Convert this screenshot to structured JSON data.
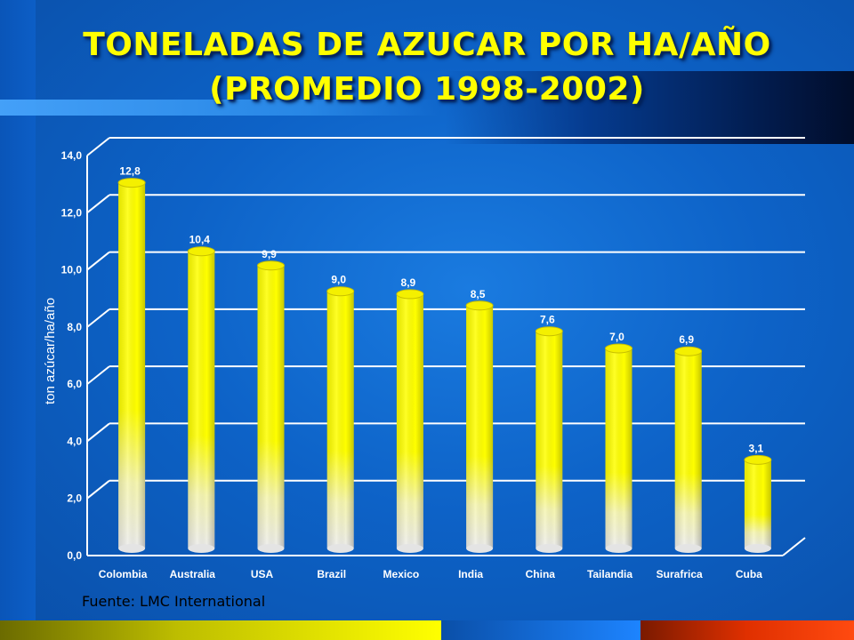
{
  "title_line1": "TONELADAS DE AZUCAR POR HA/AÑO",
  "title_line2": "(PROMEDIO 1998-2002)",
  "source": "Fuente: LMC International",
  "chart_data": {
    "type": "bar",
    "categories": [
      "Colombia",
      "Australia",
      "USA",
      "Brazil",
      "Mexico",
      "India",
      "China",
      "Tailandia",
      "Surafrica",
      "Cuba"
    ],
    "values": [
      12.8,
      10.4,
      9.9,
      9.0,
      8.9,
      8.5,
      7.6,
      7.0,
      6.9,
      3.1
    ],
    "value_labels": [
      "12,8",
      "10,4",
      "9,9",
      "9,0",
      "8,9",
      "8,5",
      "7,6",
      "7,0",
      "6,9",
      "3,1"
    ],
    "ylabel": "ton azúcar/ha/año",
    "ylim": [
      0,
      14
    ],
    "y_ticks": [
      0,
      2,
      4,
      6,
      8,
      10,
      12,
      14
    ],
    "y_tick_labels": [
      "0,0",
      "2,0",
      "4,0",
      "6,0",
      "8,0",
      "10,0",
      "12,0",
      "14,0"
    ],
    "grid": true,
    "bar_color": "#ffff00"
  }
}
